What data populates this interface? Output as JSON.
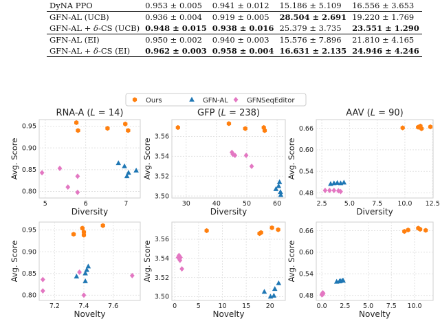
{
  "table": {
    "rows": [
      {
        "method": "DyNA PPO",
        "cells": [
          {
            "mean": "0.953",
            "std": "0.005",
            "bold": false
          },
          {
            "mean": "0.941",
            "std": "0.012",
            "bold": false
          },
          {
            "mean": "15.186",
            "std": "5.109",
            "bold": false
          },
          {
            "mean": "16.556",
            "std": "3.653",
            "bold": false
          }
        ]
      },
      {
        "method": "GFN-AL (UCB)",
        "cells": [
          {
            "mean": "0.936",
            "std": "0.004",
            "bold": false
          },
          {
            "mean": "0.919",
            "std": "0.005",
            "bold": false
          },
          {
            "mean": "28.504",
            "std": "2.691",
            "bold": true
          },
          {
            "mean": "19.220",
            "std": "1.769",
            "bold": false
          }
        ]
      },
      {
        "method": "GFN-AL + δ-CS (UCB)",
        "cells": [
          {
            "mean": "0.948",
            "std": "0.015",
            "bold": true
          },
          {
            "mean": "0.938",
            "std": "0.016",
            "bold": true
          },
          {
            "mean": "25.379",
            "std": "3.735",
            "bold": false
          },
          {
            "mean": "23.551",
            "std": "1.290",
            "bold": true
          }
        ]
      },
      {
        "method": "GFN-AL (EI)",
        "cells": [
          {
            "mean": "0.950",
            "std": "0.002",
            "bold": false
          },
          {
            "mean": "0.940",
            "std": "0.003",
            "bold": false
          },
          {
            "mean": "15.576",
            "std": "7.896",
            "bold": false
          },
          {
            "mean": "21.810",
            "std": "4.165",
            "bold": false
          }
        ]
      },
      {
        "method": "GFN-AL + δ-CS (EI)",
        "cells": [
          {
            "mean": "0.962",
            "std": "0.003",
            "bold": true
          },
          {
            "mean": "0.958",
            "std": "0.004",
            "bold": true
          },
          {
            "mean": "16.631",
            "std": "2.135",
            "bold": true
          },
          {
            "mean": "24.946",
            "std": "4.246",
            "bold": true
          }
        ]
      }
    ]
  },
  "legend": [
    {
      "label": "Ours",
      "marker": "hexagon",
      "color": "#ff7f0e"
    },
    {
      "label": "GFN-AL",
      "marker": "triangle",
      "color": "#1f77b4"
    },
    {
      "label": "GFNSeqEditor",
      "marker": "diamond",
      "color": "#e377c2"
    }
  ],
  "chart_data": [
    {
      "type": "scatter",
      "title": "RNA-A (L = 14)",
      "xlabel": "Diversity",
      "ylabel": "Avg. Score",
      "xlim": [
        4.85,
        7.35
      ],
      "ylim": [
        0.785,
        0.965
      ],
      "xticks": [
        {
          "v": 5,
          "l": "5"
        },
        {
          "v": 6,
          "l": "6"
        },
        {
          "v": 7,
          "l": "7"
        }
      ],
      "yticks": [
        {
          "v": 0.8,
          "l": "0.80"
        },
        {
          "v": 0.85,
          "l": "0.85"
        },
        {
          "v": 0.9,
          "l": "0.90"
        },
        {
          "v": 0.95,
          "l": "0.95"
        }
      ],
      "series": [
        {
          "name": "Ours",
          "points": [
            [
              5.77,
              0.958
            ],
            [
              5.81,
              0.94
            ],
            [
              6.54,
              0.945
            ],
            [
              6.98,
              0.955
            ],
            [
              7.05,
              0.94
            ]
          ]
        },
        {
          "name": "GFN-AL",
          "points": [
            [
              6.81,
              0.865
            ],
            [
              6.96,
              0.858
            ],
            [
              7.02,
              0.835
            ],
            [
              7.06,
              0.843
            ],
            [
              7.25,
              0.848
            ]
          ]
        },
        {
          "name": "GFNSeqEditor",
          "points": [
            [
              4.92,
              0.843
            ],
            [
              5.36,
              0.853
            ],
            [
              5.56,
              0.81
            ],
            [
              5.8,
              0.835
            ],
            [
              5.8,
              0.798
            ]
          ]
        }
      ]
    },
    {
      "type": "scatter",
      "title": "GFP (L = 238)",
      "xlabel": "Diversity",
      "ylabel": "Avg. Score",
      "xlim": [
        25.3,
        62.7
      ],
      "ylim": [
        3.498,
        3.577
      ],
      "xticks": [
        {
          "v": 30,
          "l": "30"
        },
        {
          "v": 40,
          "l": "40"
        },
        {
          "v": 50,
          "l": "50"
        },
        {
          "v": 60,
          "l": "60"
        }
      ],
      "yticks": [
        {
          "v": 3.5,
          "l": "3.50"
        },
        {
          "v": 3.52,
          "l": "3.52"
        },
        {
          "v": 3.54,
          "l": "3.54"
        },
        {
          "v": 3.56,
          "l": "3.56"
        }
      ],
      "series": [
        {
          "name": "Ours",
          "points": [
            [
              27.3,
              3.569
            ],
            [
              44.1,
              3.573
            ],
            [
              49.5,
              3.568
            ],
            [
              55.6,
              3.569
            ],
            [
              55.9,
              3.566
            ]
          ]
        },
        {
          "name": "GFN-AL",
          "points": [
            [
              59.6,
              3.507
            ],
            [
              60.5,
              3.51
            ],
            [
              60.8,
              3.514
            ],
            [
              61.1,
              3.504
            ],
            [
              61.2,
              3.501
            ]
          ]
        },
        {
          "name": "GFNSeqEditor",
          "points": [
            [
              45.1,
              3.544
            ],
            [
              45.4,
              3.542
            ],
            [
              46.1,
              3.541
            ],
            [
              49.8,
              3.541
            ],
            [
              51.6,
              3.53
            ]
          ]
        }
      ]
    },
    {
      "type": "scatter",
      "title": "AAV (L = 90)",
      "xlabel": "Diversity",
      "ylabel": "Avg. Score",
      "xlim": [
        2.0,
        12.55
      ],
      "ylim": [
        0.466,
        0.684
      ],
      "xticks": [
        {
          "v": 2.5,
          "l": "2.5"
        },
        {
          "v": 5.0,
          "l": "5.0"
        },
        {
          "v": 7.5,
          "l": "7.5"
        },
        {
          "v": 10.0,
          "l": "10.0"
        },
        {
          "v": 12.5,
          "l": "12.5"
        }
      ],
      "yticks": [
        {
          "v": 0.48,
          "l": "0.48"
        },
        {
          "v": 0.54,
          "l": "0.54"
        },
        {
          "v": 0.6,
          "l": "0.60"
        },
        {
          "v": 0.66,
          "l": "0.66"
        }
      ],
      "series": [
        {
          "name": "Ours",
          "points": [
            [
              9.8,
              0.661
            ],
            [
              11.2,
              0.663
            ],
            [
              11.4,
              0.666
            ],
            [
              11.5,
              0.659
            ],
            [
              12.3,
              0.664
            ]
          ]
        },
        {
          "name": "GFN-AL",
          "points": [
            [
              3.3,
              0.505
            ],
            [
              3.6,
              0.507
            ],
            [
              3.9,
              0.508
            ],
            [
              4.2,
              0.507
            ],
            [
              4.5,
              0.509
            ]
          ]
        },
        {
          "name": "GFNSeqEditor",
          "points": [
            [
              2.8,
              0.487
            ],
            [
              3.2,
              0.487
            ],
            [
              3.6,
              0.487
            ],
            [
              4.0,
              0.486
            ],
            [
              4.2,
              0.484
            ]
          ]
        }
      ]
    },
    {
      "type": "scatter",
      "title": "",
      "xlabel": "Novelty",
      "ylabel": "Avg. Score",
      "xlim": [
        7.095,
        7.785
      ],
      "ylim": [
        0.788,
        0.968
      ],
      "xticks": [
        {
          "v": 7.2,
          "l": "7.2"
        },
        {
          "v": 7.4,
          "l": "7.4"
        },
        {
          "v": 7.6,
          "l": "7.6"
        }
      ],
      "yticks": [
        {
          "v": 0.8,
          "l": "0.80"
        },
        {
          "v": 0.85,
          "l": "0.85"
        },
        {
          "v": 0.9,
          "l": "0.90"
        },
        {
          "v": 0.95,
          "l": "0.95"
        }
      ],
      "series": [
        {
          "name": "Ours",
          "points": [
            [
              7.33,
              0.94
            ],
            [
              7.39,
              0.954
            ],
            [
              7.4,
              0.945
            ],
            [
              7.4,
              0.938
            ],
            [
              7.53,
              0.96
            ]
          ]
        },
        {
          "name": "GFN-AL",
          "points": [
            [
              7.35,
              0.843
            ],
            [
              7.41,
              0.832
            ],
            [
              7.41,
              0.85
            ],
            [
              7.42,
              0.858
            ],
            [
              7.43,
              0.866
            ]
          ]
        },
        {
          "name": "GFNSeqEditor",
          "points": [
            [
              7.12,
              0.836
            ],
            [
              7.12,
              0.81
            ],
            [
              7.37,
              0.853
            ],
            [
              7.4,
              0.8
            ],
            [
              7.73,
              0.845
            ]
          ]
        }
      ]
    },
    {
      "type": "scatter",
      "title": "",
      "xlabel": "Novelty",
      "ylabel": "Avg. Score",
      "xlim": [
        -0.6,
        23.2
      ],
      "ylim": [
        3.496,
        3.578
      ],
      "xticks": [
        {
          "v": 0,
          "l": "0"
        },
        {
          "v": 5,
          "l": "5"
        },
        {
          "v": 10,
          "l": "10"
        },
        {
          "v": 15,
          "l": "15"
        },
        {
          "v": 20,
          "l": "20"
        }
      ],
      "yticks": [
        {
          "v": 3.5,
          "l": "3.50"
        },
        {
          "v": 3.52,
          "l": "3.52"
        },
        {
          "v": 3.54,
          "l": "3.54"
        },
        {
          "v": 3.56,
          "l": "3.56"
        }
      ],
      "series": [
        {
          "name": "Ours",
          "points": [
            [
              6.7,
              3.569
            ],
            [
              17.8,
              3.566
            ],
            [
              18.1,
              3.567
            ],
            [
              20.4,
              3.572
            ],
            [
              21.7,
              3.57
            ]
          ]
        },
        {
          "name": "GFN-AL",
          "points": [
            [
              18.8,
              3.505
            ],
            [
              20.1,
              3.5
            ],
            [
              20.8,
              3.501
            ],
            [
              21.0,
              3.508
            ],
            [
              21.8,
              3.514
            ]
          ]
        },
        {
          "name": "GFNSeqEditor",
          "points": [
            [
              0.7,
              3.541
            ],
            [
              0.9,
              3.543
            ],
            [
              1.1,
              3.538
            ],
            [
              1.2,
              3.541
            ],
            [
              1.5,
              3.529
            ]
          ]
        }
      ]
    },
    {
      "type": "scatter",
      "title": "",
      "xlabel": "Novelty",
      "ylabel": "Avg. Score",
      "xlim": [
        -0.6,
        12.0
      ],
      "ylim": [
        0.466,
        0.684
      ],
      "xticks": [
        {
          "v": 0.0,
          "l": "0.0"
        },
        {
          "v": 2.5,
          "l": "2.5"
        },
        {
          "v": 5.0,
          "l": "5.0"
        },
        {
          "v": 7.5,
          "l": "7.5"
        },
        {
          "v": 10.0,
          "l": "10.0"
        }
      ],
      "yticks": [
        {
          "v": 0.48,
          "l": "0.48"
        },
        {
          "v": 0.54,
          "l": "0.54"
        },
        {
          "v": 0.6,
          "l": "0.60"
        },
        {
          "v": 0.66,
          "l": "0.66"
        }
      ],
      "series": [
        {
          "name": "Ours",
          "points": [
            [
              8.9,
              0.658
            ],
            [
              9.3,
              0.662
            ],
            [
              10.4,
              0.667
            ],
            [
              10.6,
              0.664
            ],
            [
              11.2,
              0.661
            ]
          ]
        },
        {
          "name": "GFN-AL",
          "points": [
            [
              1.6,
              0.518
            ],
            [
              1.9,
              0.519
            ],
            [
              2.0,
              0.52
            ],
            [
              2.2,
              0.521
            ],
            [
              2.3,
              0.521
            ]
          ]
        },
        {
          "name": "GFNSeqEditor",
          "points": [
            [
              0.0,
              0.482
            ],
            [
              0.05,
              0.485
            ],
            [
              0.1,
              0.487
            ],
            [
              0.1,
              0.483
            ],
            [
              0.15,
              0.486
            ]
          ]
        }
      ]
    }
  ]
}
